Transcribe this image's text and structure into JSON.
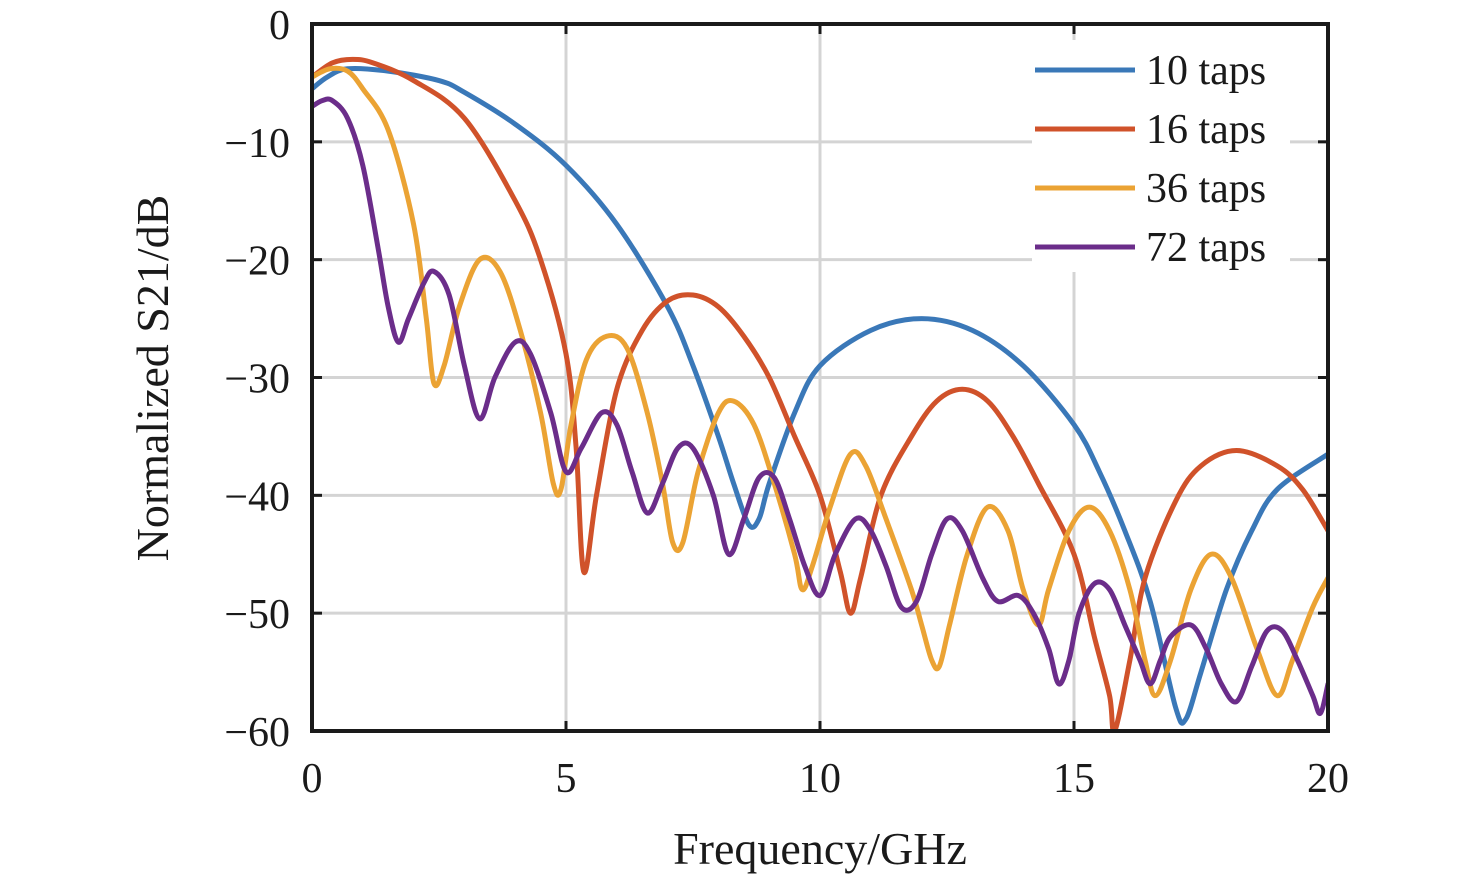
{
  "chart_data": {
    "type": "line",
    "title": "",
    "xlabel": "Frequency/GHz",
    "ylabel": "Normalized S21/dB",
    "xlim": [
      0,
      20
    ],
    "ylim": [
      -60,
      0
    ],
    "xticks": [
      0,
      5,
      10,
      15,
      20
    ],
    "yticks": [
      0,
      -10,
      -20,
      -30,
      -40,
      -50,
      -60
    ],
    "xtick_labels": [
      "0",
      "5",
      "10",
      "15",
      "20"
    ],
    "ytick_labels": [
      "0",
      "−10",
      "−20",
      "−30",
      "−40",
      "−50",
      "−60"
    ],
    "grid": true,
    "legend_position": "top-right",
    "series": [
      {
        "name": "10 taps",
        "color": "#3a78b8",
        "points": [
          [
            0,
            -5.5
          ],
          [
            0.3,
            -4.5
          ],
          [
            0.7,
            -3.8
          ],
          [
            1.5,
            -4
          ],
          [
            2.5,
            -4.8
          ],
          [
            3,
            -5.8
          ],
          [
            4,
            -8.5
          ],
          [
            5,
            -12
          ],
          [
            6,
            -17
          ],
          [
            7,
            -24
          ],
          [
            7.5,
            -29
          ],
          [
            8,
            -35
          ],
          [
            8.3,
            -39
          ],
          [
            8.6,
            -42.5
          ],
          [
            8.8,
            -42
          ],
          [
            9,
            -39
          ],
          [
            9.5,
            -33
          ],
          [
            10,
            -29
          ],
          [
            11,
            -26
          ],
          [
            12,
            -25
          ],
          [
            13,
            -26
          ],
          [
            14,
            -29
          ],
          [
            15,
            -34
          ],
          [
            15.5,
            -38
          ],
          [
            16,
            -43
          ],
          [
            16.5,
            -49
          ],
          [
            17,
            -58
          ],
          [
            17.2,
            -59
          ],
          [
            17.5,
            -55
          ],
          [
            18,
            -48
          ],
          [
            18.5,
            -43
          ],
          [
            19,
            -39.5
          ],
          [
            20,
            -36.5
          ]
        ]
      },
      {
        "name": "16 taps",
        "color": "#d0522a",
        "points": [
          [
            0,
            -4.5
          ],
          [
            0.4,
            -3.3
          ],
          [
            0.8,
            -3
          ],
          [
            1.2,
            -3.3
          ],
          [
            2,
            -4.8
          ],
          [
            3,
            -8
          ],
          [
            4,
            -15
          ],
          [
            4.5,
            -20
          ],
          [
            5,
            -28
          ],
          [
            5.2,
            -36
          ],
          [
            5.35,
            -46.5
          ],
          [
            5.6,
            -40
          ],
          [
            6,
            -31
          ],
          [
            6.5,
            -26
          ],
          [
            7,
            -23.5
          ],
          [
            7.5,
            -23
          ],
          [
            8,
            -24
          ],
          [
            8.5,
            -26.5
          ],
          [
            9,
            -30
          ],
          [
            9.5,
            -35
          ],
          [
            10,
            -40
          ],
          [
            10.4,
            -46.5
          ],
          [
            10.6,
            -50
          ],
          [
            10.8,
            -47
          ],
          [
            11.2,
            -40
          ],
          [
            11.8,
            -35
          ],
          [
            12.3,
            -32
          ],
          [
            12.8,
            -31
          ],
          [
            13.3,
            -32
          ],
          [
            13.8,
            -35
          ],
          [
            14.3,
            -39
          ],
          [
            15,
            -45
          ],
          [
            15.4,
            -52
          ],
          [
            15.7,
            -57
          ],
          [
            15.8,
            -60
          ],
          [
            16.1,
            -54
          ],
          [
            16.4,
            -47
          ],
          [
            17,
            -40.5
          ],
          [
            17.5,
            -37.5
          ],
          [
            18.2,
            -36.2
          ],
          [
            19,
            -37.5
          ],
          [
            19.5,
            -39.5
          ],
          [
            20,
            -43
          ]
        ]
      },
      {
        "name": "36 taps",
        "color": "#eba334",
        "points": [
          [
            0,
            -4.5
          ],
          [
            0.35,
            -3.8
          ],
          [
            0.7,
            -4
          ],
          [
            1,
            -5.5
          ],
          [
            1.5,
            -9
          ],
          [
            2,
            -17
          ],
          [
            2.25,
            -25
          ],
          [
            2.4,
            -30.5
          ],
          [
            2.6,
            -29
          ],
          [
            2.9,
            -24
          ],
          [
            3.3,
            -20
          ],
          [
            3.7,
            -21
          ],
          [
            4.1,
            -26
          ],
          [
            4.5,
            -33
          ],
          [
            4.75,
            -39
          ],
          [
            4.9,
            -39.5
          ],
          [
            5.1,
            -34
          ],
          [
            5.4,
            -28.5
          ],
          [
            5.8,
            -26.5
          ],
          [
            6.2,
            -27.5
          ],
          [
            6.6,
            -33
          ],
          [
            6.9,
            -39
          ],
          [
            7.1,
            -44
          ],
          [
            7.3,
            -44
          ],
          [
            7.6,
            -38
          ],
          [
            8,
            -33
          ],
          [
            8.3,
            -32
          ],
          [
            8.7,
            -34
          ],
          [
            9.1,
            -39
          ],
          [
            9.5,
            -45
          ],
          [
            9.65,
            -48
          ],
          [
            9.85,
            -46
          ],
          [
            10.2,
            -41
          ],
          [
            10.6,
            -36.5
          ],
          [
            10.9,
            -37.5
          ],
          [
            11.3,
            -42
          ],
          [
            11.8,
            -48
          ],
          [
            12,
            -51
          ],
          [
            12.2,
            -54
          ],
          [
            12.35,
            -54.5
          ],
          [
            12.55,
            -51
          ],
          [
            12.9,
            -45
          ],
          [
            13.3,
            -41
          ],
          [
            13.7,
            -43
          ],
          [
            14,
            -48
          ],
          [
            14.3,
            -51
          ],
          [
            14.5,
            -48
          ],
          [
            14.9,
            -43
          ],
          [
            15.3,
            -41
          ],
          [
            15.7,
            -43
          ],
          [
            16.1,
            -48
          ],
          [
            16.4,
            -54
          ],
          [
            16.6,
            -57
          ],
          [
            16.9,
            -54
          ],
          [
            17.3,
            -48
          ],
          [
            17.7,
            -45
          ],
          [
            18.1,
            -47
          ],
          [
            18.6,
            -53
          ],
          [
            19,
            -57
          ],
          [
            19.3,
            -54
          ],
          [
            19.7,
            -49.5
          ],
          [
            20,
            -47
          ]
        ]
      },
      {
        "name": "72 taps",
        "color": "#6b2d8a",
        "points": [
          [
            0,
            -7
          ],
          [
            0.2,
            -6.5
          ],
          [
            0.4,
            -6.5
          ],
          [
            0.7,
            -8
          ],
          [
            1,
            -12
          ],
          [
            1.3,
            -19
          ],
          [
            1.5,
            -24
          ],
          [
            1.7,
            -27
          ],
          [
            1.9,
            -25
          ],
          [
            2.2,
            -22
          ],
          [
            2.4,
            -21
          ],
          [
            2.7,
            -23
          ],
          [
            3,
            -29
          ],
          [
            3.3,
            -33.5
          ],
          [
            3.6,
            -30
          ],
          [
            4,
            -27
          ],
          [
            4.3,
            -28
          ],
          [
            4.7,
            -33
          ],
          [
            5,
            -38
          ],
          [
            5.3,
            -36
          ],
          [
            5.7,
            -33
          ],
          [
            6,
            -34
          ],
          [
            6.3,
            -38
          ],
          [
            6.6,
            -41.5
          ],
          [
            6.9,
            -39
          ],
          [
            7.2,
            -36
          ],
          [
            7.5,
            -36
          ],
          [
            7.9,
            -40
          ],
          [
            8.2,
            -45
          ],
          [
            8.5,
            -42
          ],
          [
            8.8,
            -38.5
          ],
          [
            9.1,
            -38.5
          ],
          [
            9.4,
            -42
          ],
          [
            9.7,
            -46
          ],
          [
            10,
            -48.5
          ],
          [
            10.3,
            -45
          ],
          [
            10.7,
            -42
          ],
          [
            11,
            -43
          ],
          [
            11.3,
            -46
          ],
          [
            11.6,
            -49.5
          ],
          [
            11.9,
            -49
          ],
          [
            12.2,
            -45
          ],
          [
            12.5,
            -42
          ],
          [
            12.8,
            -43
          ],
          [
            13.2,
            -47
          ],
          [
            13.5,
            -49
          ],
          [
            13.9,
            -48.5
          ],
          [
            14.2,
            -50
          ],
          [
            14.5,
            -53
          ],
          [
            14.7,
            -56
          ],
          [
            14.9,
            -54
          ],
          [
            15.1,
            -50
          ],
          [
            15.4,
            -47.5
          ],
          [
            15.7,
            -48
          ],
          [
            16,
            -51
          ],
          [
            16.3,
            -54
          ],
          [
            16.5,
            -56
          ],
          [
            16.7,
            -54
          ],
          [
            16.9,
            -52
          ],
          [
            17.3,
            -51
          ],
          [
            17.6,
            -53
          ],
          [
            17.9,
            -56
          ],
          [
            18.2,
            -57.5
          ],
          [
            18.5,
            -54.5
          ],
          [
            18.8,
            -51.5
          ],
          [
            19.1,
            -51.5
          ],
          [
            19.4,
            -54
          ],
          [
            19.7,
            -57
          ],
          [
            19.85,
            -58.5
          ],
          [
            20,
            -56
          ]
        ]
      }
    ]
  }
}
